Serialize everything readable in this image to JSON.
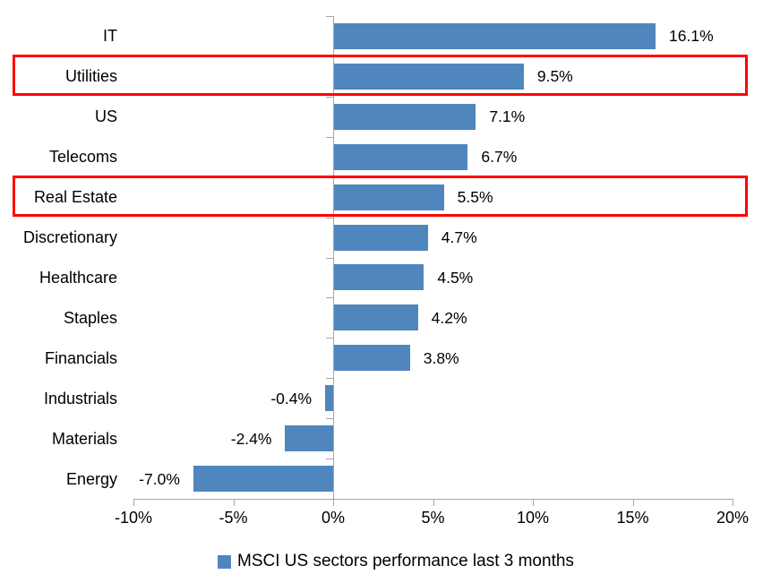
{
  "chart_data": {
    "type": "bar",
    "orientation": "horizontal",
    "categories": [
      "IT",
      "Utilities",
      "US",
      "Telecoms",
      "Real Estate",
      "Discretionary",
      "Healthcare",
      "Staples",
      "Financials",
      "Industrials",
      "Materials",
      "Energy"
    ],
    "values": [
      16.1,
      9.5,
      7.1,
      6.7,
      5.5,
      4.7,
      4.5,
      4.2,
      3.8,
      -0.4,
      -2.4,
      -7.0
    ],
    "data_labels": [
      "16.1%",
      "9.5%",
      "7.1%",
      "6.7%",
      "5.5%",
      "4.7%",
      "4.5%",
      "4.2%",
      "3.8%",
      "-0.4%",
      "-2.4%",
      "-7.0%"
    ],
    "x_ticks": [
      "-10%",
      "-5%",
      "0%",
      "5%",
      "10%",
      "15%",
      "20%"
    ],
    "x_tick_values": [
      -10,
      -5,
      0,
      5,
      10,
      15,
      20
    ],
    "xlim": [
      -10,
      20
    ],
    "grid": "off",
    "legend": "MSCI US sectors performance last 3 months",
    "legend_position": "bottom-center",
    "highlighted_categories": [
      "Utilities",
      "Real Estate"
    ],
    "colors": {
      "bar": "#4f86bd",
      "axis": "#a6a6a6",
      "highlight": "#ff0000",
      "text": "#000000"
    }
  }
}
